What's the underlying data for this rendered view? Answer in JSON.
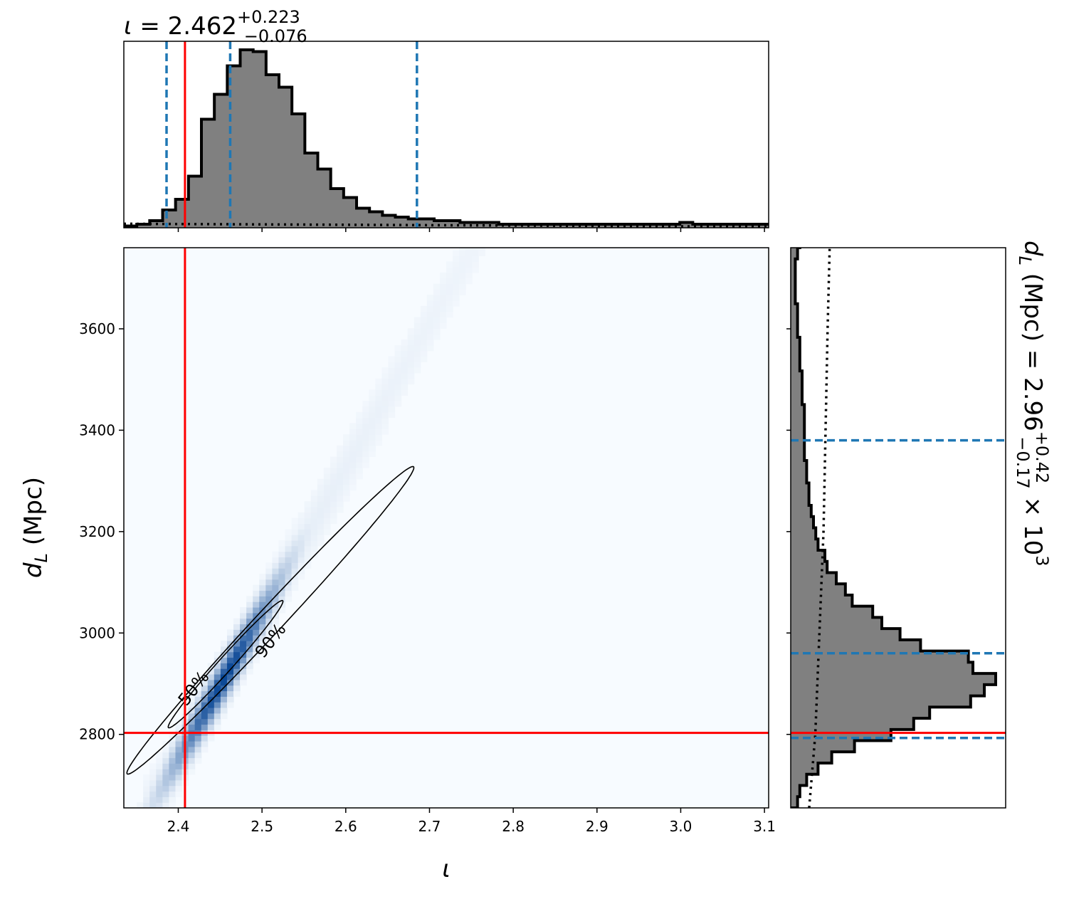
{
  "chart_data": {
    "type": "corner",
    "title_top": {
      "param": "ι",
      "eq": " = ",
      "value": "2.462",
      "plus": "+0.223",
      "minus": "−0.076"
    },
    "title_right": {
      "prefix": "d",
      "sub": "L",
      "unit": " (Mpc) = ",
      "value": "2.96",
      "plus": "+0.42",
      "minus": "−0.17",
      "suffix": " × 10",
      "exp": "3"
    },
    "xlabel": "ι",
    "ylabel": {
      "main": "d",
      "sub": "L",
      "unit": " (Mpc)"
    },
    "xlim": [
      2.335,
      3.105
    ],
    "ylim": [
      2655,
      3760
    ],
    "xticks": [
      2.4,
      2.5,
      2.6,
      2.7,
      2.8,
      2.9,
      3.0,
      3.1
    ],
    "xtick_labels": [
      "2.4",
      "2.5",
      "2.6",
      "2.7",
      "2.8",
      "2.9",
      "3.0",
      "3.1"
    ],
    "yticks": [
      2800,
      3000,
      3200,
      3400,
      3600
    ],
    "ytick_labels": [
      "2800",
      "3000",
      "3200",
      "3400",
      "3600"
    ],
    "truth": {
      "iota": 2.408,
      "dL": 2803
    },
    "iota_quantiles": [
      2.386,
      2.462,
      2.685
    ],
    "dL_quantiles": [
      2793,
      2960,
      3380
    ],
    "contour_labels": [
      "50%",
      "90%"
    ],
    "hist_iota": {
      "edges_start": 2.335,
      "bin_width": 0.01544,
      "heights": [
        1,
        2,
        4,
        10,
        16,
        29,
        61,
        75,
        91,
        100,
        99,
        86,
        79,
        64,
        42,
        33,
        22,
        17,
        11,
        9,
        7,
        6,
        5,
        5,
        4,
        4,
        3,
        3,
        3,
        2,
        2,
        2,
        2,
        2,
        2,
        2,
        2,
        2,
        2,
        2,
        2,
        2,
        2,
        3,
        2,
        2,
        2,
        2,
        2,
        2
      ]
    },
    "hist_dL": {
      "edges_start": 2655,
      "bin_width": 22.1,
      "heights": [
        3,
        4,
        7,
        12,
        18,
        28,
        44,
        54,
        61,
        79,
        85,
        90,
        80,
        78,
        57,
        48,
        40,
        36,
        27,
        24,
        20,
        16,
        15,
        12,
        11,
        10,
        9,
        8,
        8,
        7,
        7,
        6,
        6,
        6,
        6,
        6,
        5,
        5,
        5,
        4,
        4,
        4,
        3,
        3,
        3,
        2,
        2,
        2,
        2,
        3,
        4,
        4,
        5,
        6,
        6,
        6,
        5,
        5,
        6,
        6,
        5,
        4,
        3,
        3,
        3,
        3,
        3,
        2,
        2,
        2,
        2,
        2,
        2,
        2,
        2,
        2,
        2,
        2,
        2,
        2,
        2,
        2,
        2,
        2,
        2,
        2,
        2,
        2,
        2,
        2,
        2,
        2,
        2,
        2,
        2,
        2,
        2,
        2,
        2,
        2
      ]
    },
    "prior_iota": [
      [
        2.335,
        0.045
      ],
      [
        3.105,
        0.012
      ]
    ],
    "prior_dL": [
      [
        2655,
        0.09
      ],
      [
        2800,
        0.12
      ],
      [
        3000,
        0.14
      ],
      [
        3200,
        0.16
      ],
      [
        3400,
        0.17
      ],
      [
        3600,
        0.18
      ],
      [
        3760,
        0.19
      ]
    ]
  }
}
